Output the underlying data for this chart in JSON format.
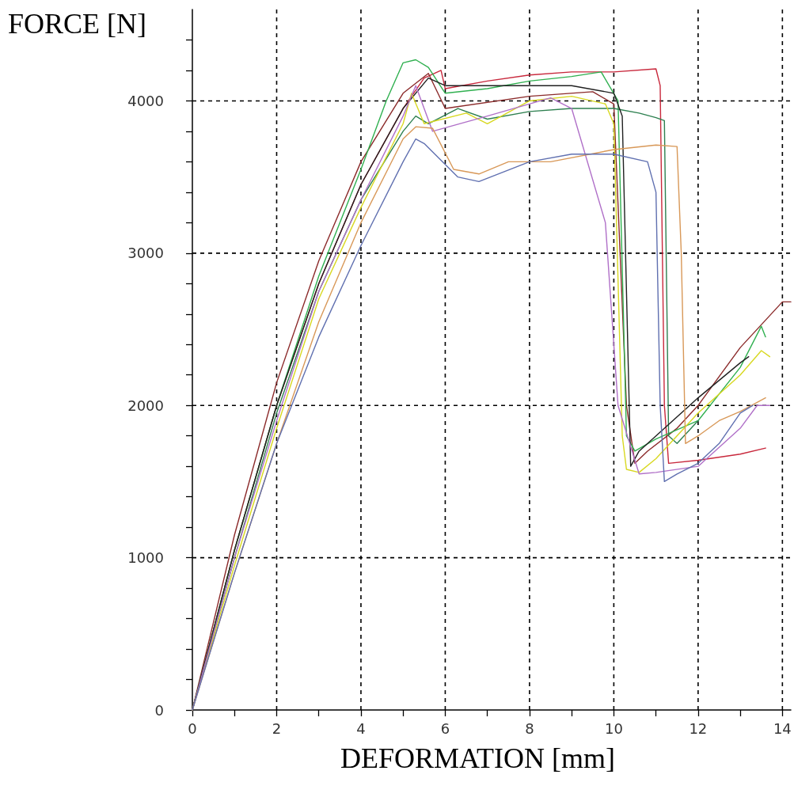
{
  "chart_data": {
    "type": "line",
    "xlabel": "DEFORMATION [mm]",
    "ylabel": "FORCE [N]",
    "xlim": [
      0,
      14.2
    ],
    "ylim": [
      0,
      4600
    ],
    "xticks": [
      0,
      {
        "value": 1,
        "label": null
      },
      2,
      {
        "value": 3,
        "label": null
      },
      4,
      {
        "value": 5,
        "label": null
      },
      6,
      {
        "value": 7,
        "label": null
      },
      8,
      {
        "value": 9,
        "label": null
      },
      10,
      {
        "value": 11,
        "label": null
      },
      12,
      {
        "value": 13,
        "label": null
      },
      14
    ],
    "yticks": [
      0,
      {
        "value": 200,
        "label": null
      },
      {
        "value": 400,
        "label": null
      },
      {
        "value": 600,
        "label": null
      },
      {
        "value": 800,
        "label": null
      },
      1000,
      {
        "value": 1200,
        "label": null
      },
      {
        "value": 1400,
        "label": null
      },
      {
        "value": 1600,
        "label": null
      },
      {
        "value": 1800,
        "label": null
      },
      2000,
      {
        "value": 2200,
        "label": null
      },
      {
        "value": 2400,
        "label": null
      },
      {
        "value": 2600,
        "label": null
      },
      {
        "value": 2800,
        "label": null
      },
      3000,
      {
        "value": 3200,
        "label": null
      },
      {
        "value": 3400,
        "label": null
      },
      {
        "value": 3600,
        "label": null
      },
      {
        "value": 3800,
        "label": null
      },
      4000,
      {
        "value": 4200,
        "label": null
      },
      {
        "value": 4400,
        "label": null
      }
    ],
    "grid": true,
    "marker": "none",
    "line_style": "solid",
    "series": [
      {
        "color": "#c8283c",
        "x": [
          0,
          1,
          2,
          3,
          4,
          5,
          5.5,
          5.9,
          6,
          7,
          8,
          9,
          10,
          11,
          11.1,
          11.2,
          11.3,
          12,
          13,
          13.6
        ],
        "values": [
          0,
          1050,
          2000,
          2800,
          3450,
          3950,
          4150,
          4200,
          4080,
          4130,
          4170,
          4190,
          4190,
          4210,
          4100,
          2000,
          1620,
          1640,
          1680,
          1720
        ]
      },
      {
        "color": "#8b2a2a",
        "x": [
          0,
          1,
          2,
          3,
          4,
          5,
          5.6,
          6,
          8,
          9.5,
          10,
          10.3,
          10.5,
          10.8,
          11.5,
          12,
          13,
          14,
          14.2
        ],
        "values": [
          0,
          1150,
          2150,
          2950,
          3600,
          4050,
          4180,
          3950,
          4030,
          4060,
          3980,
          2000,
          1620,
          1700,
          1850,
          2000,
          2380,
          2680,
          2680
        ]
      },
      {
        "color": "#30b050",
        "x": [
          0,
          1,
          2,
          3,
          4,
          4.6,
          5,
          5.3,
          5.6,
          6,
          7,
          8,
          9,
          9.7,
          10.1,
          10.3,
          10.5,
          11,
          12,
          13,
          13.5,
          13.6
        ],
        "values": [
          0,
          1050,
          2000,
          2850,
          3550,
          4000,
          4250,
          4270,
          4220,
          4050,
          4080,
          4130,
          4160,
          4190,
          4000,
          1800,
          1700,
          1780,
          1900,
          2250,
          2520,
          2450
        ]
      },
      {
        "color": "#2e8050",
        "x": [
          0,
          1,
          2,
          3,
          4,
          5,
          5.3,
          5.6,
          6.3,
          7,
          8,
          9,
          10,
          10.6,
          11,
          11.2,
          11.3,
          11.5,
          12
        ],
        "values": [
          0,
          1000,
          1950,
          2750,
          3350,
          3800,
          3900,
          3850,
          3950,
          3880,
          3930,
          3950,
          3950,
          3920,
          3890,
          3870,
          1800,
          1750,
          1900
        ]
      },
      {
        "color": "#202020",
        "x": [
          0,
          1,
          2,
          3,
          4,
          5,
          5.6,
          6,
          8,
          9,
          10,
          10.2,
          10.4,
          10.6,
          11,
          12,
          13,
          13.2
        ],
        "values": [
          0,
          1050,
          2000,
          2800,
          3450,
          3950,
          4150,
          4100,
          4100,
          4100,
          4050,
          3900,
          1600,
          1700,
          1800,
          2050,
          2280,
          2320
        ]
      },
      {
        "color": "#d8d820",
        "x": [
          0,
          1,
          2,
          3,
          4,
          5,
          5.2,
          5.5,
          6.5,
          7,
          8,
          9,
          9.8,
          10,
          10.2,
          10.3,
          10.6,
          11,
          12,
          13,
          13.5,
          13.7
        ],
        "values": [
          0,
          950,
          1850,
          2700,
          3300,
          3850,
          4050,
          3850,
          3920,
          3850,
          4000,
          4030,
          3980,
          3850,
          1800,
          1580,
          1560,
          1650,
          1950,
          2200,
          2360,
          2320
        ]
      },
      {
        "color": "#b070c8",
        "x": [
          0,
          1,
          2,
          3,
          4,
          5,
          5.3,
          5.7,
          7,
          8.5,
          9,
          9.8,
          10.1,
          10.6,
          11,
          12,
          13,
          13.4,
          13.7
        ],
        "values": [
          0,
          1000,
          1900,
          2750,
          3350,
          3900,
          4100,
          3800,
          3900,
          4020,
          3950,
          3200,
          2000,
          1550,
          1560,
          1600,
          1850,
          2000,
          2000
        ]
      },
      {
        "color": "#d89858",
        "x": [
          0,
          1,
          2,
          3,
          4,
          5,
          5.3,
          5.7,
          6.2,
          6.8,
          7.5,
          8.5,
          10,
          11,
          11.5,
          11.6,
          11.7,
          12,
          12.5,
          13,
          13.6
        ],
        "values": [
          0,
          900,
          1750,
          2550,
          3200,
          3750,
          3830,
          3820,
          3550,
          3520,
          3600,
          3600,
          3680,
          3710,
          3700,
          3000,
          1750,
          1800,
          1900,
          1960,
          2050
        ]
      },
      {
        "color": "#6070b0",
        "x": [
          0,
          1,
          2,
          3,
          4,
          5,
          5.3,
          5.5,
          6.3,
          6.8,
          8,
          9,
          10,
          10.8,
          11,
          11.1,
          11.2,
          11.5,
          12,
          12.5,
          13,
          13.3
        ],
        "values": [
          0,
          900,
          1750,
          2450,
          3050,
          3600,
          3750,
          3720,
          3500,
          3470,
          3600,
          3650,
          3650,
          3600,
          3400,
          2000,
          1500,
          1550,
          1620,
          1750,
          1950,
          2000
        ]
      }
    ]
  }
}
